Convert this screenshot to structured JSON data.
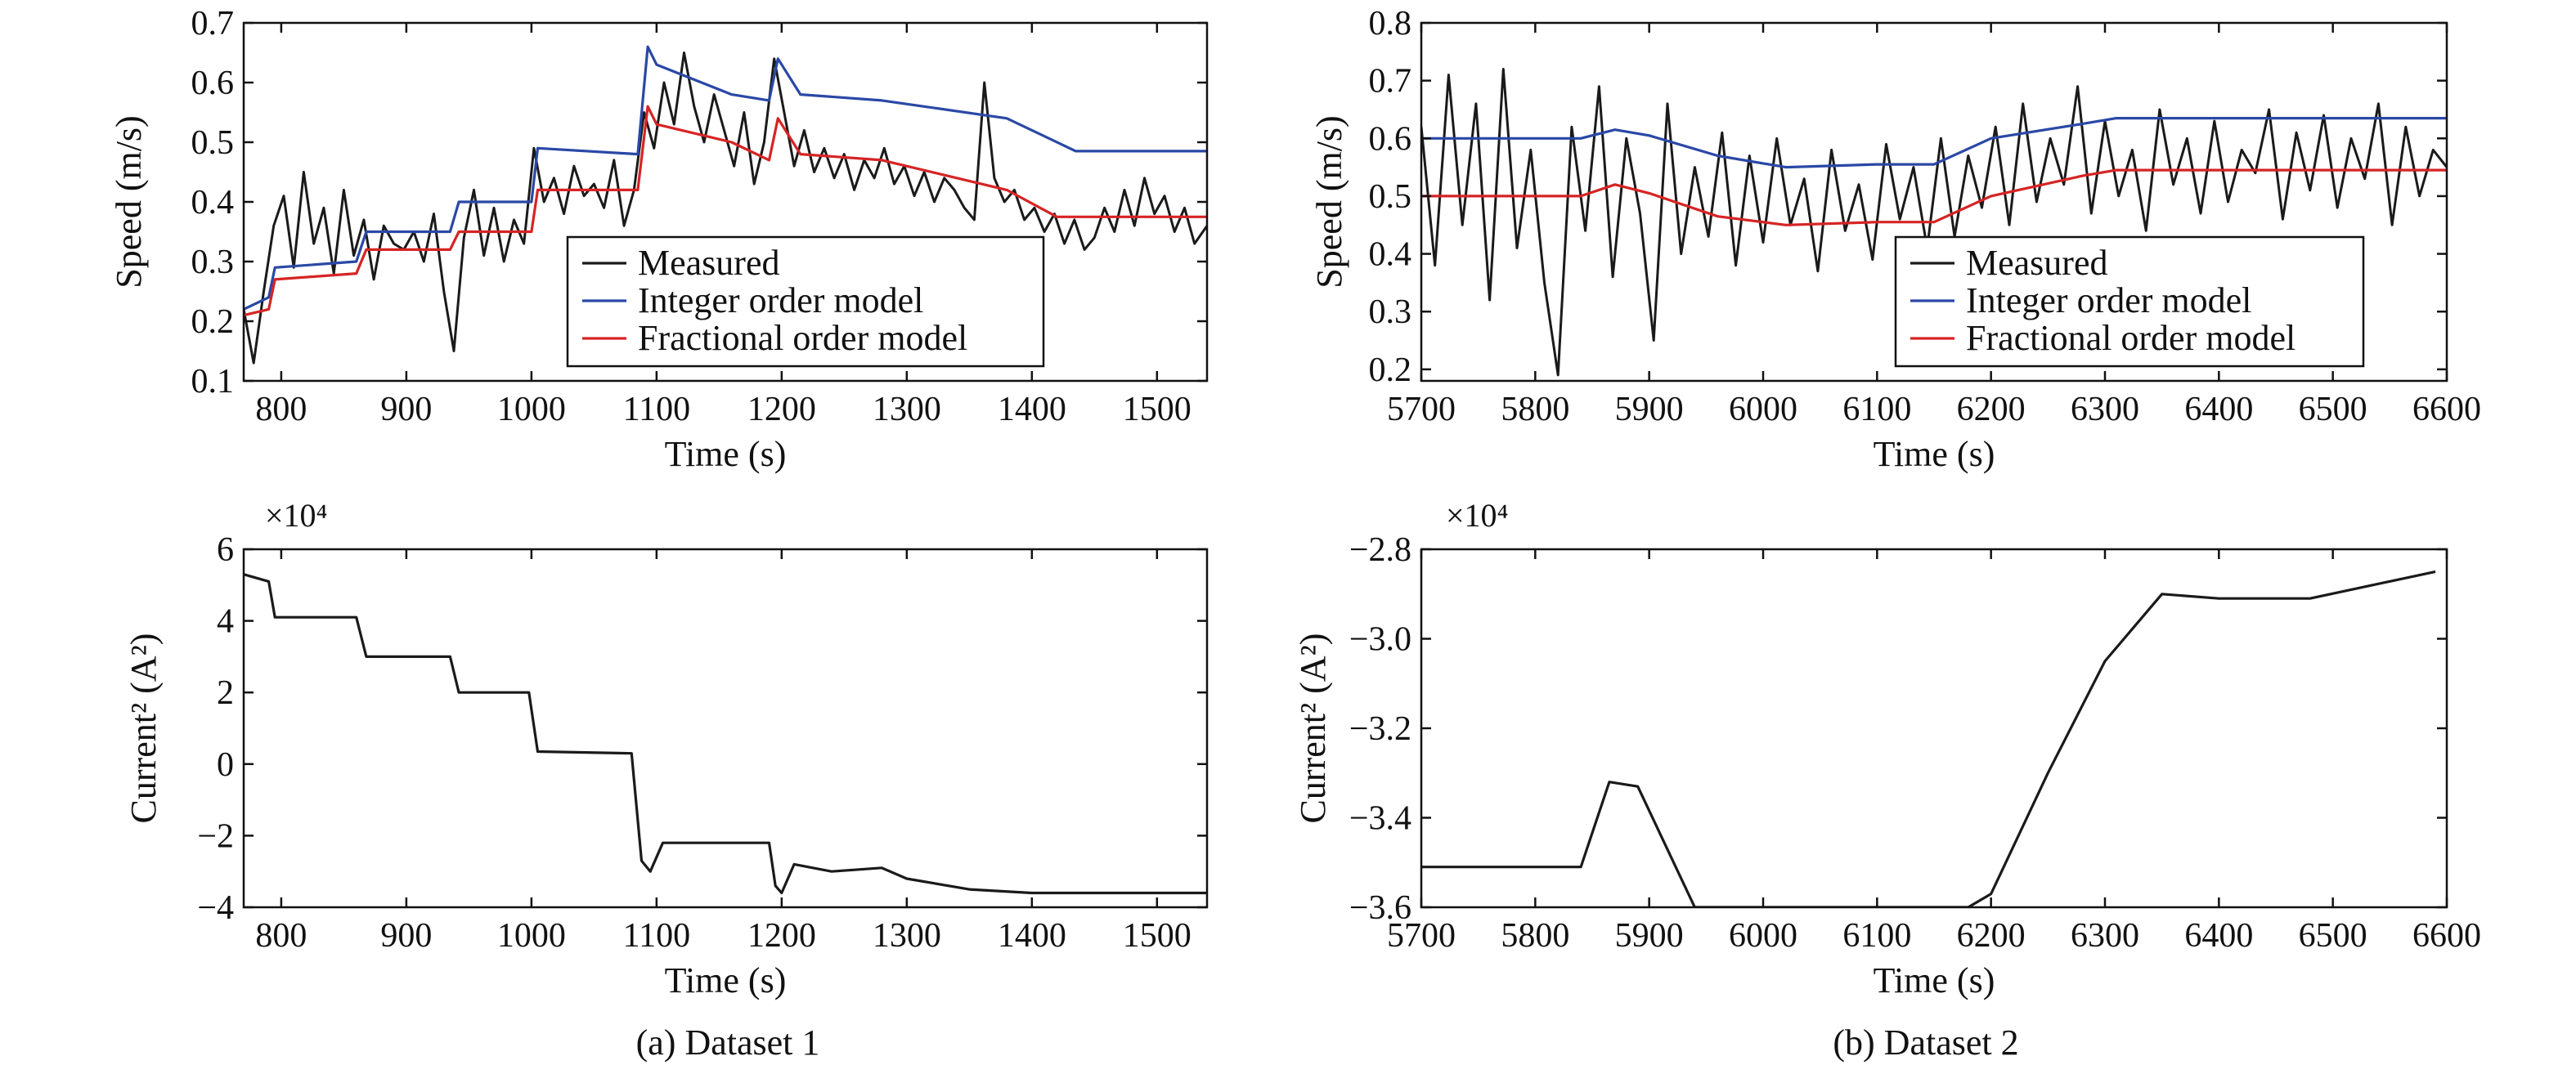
{
  "figure": {
    "caption_a": "(a) Dataset 1",
    "caption_b": "(b) Dataset 2"
  },
  "colors": {
    "measured": "#1a1a1a",
    "integer": "#2a48a6",
    "fractional": "#d62424",
    "current": "#1a1a1a"
  },
  "chart_data": [
    {
      "id": "a-speed",
      "type": "line",
      "xlabel": "Time (s)",
      "ylabel": "Speed (m/s)",
      "xlim": [
        770,
        1540
      ],
      "ylim": [
        0.1,
        0.7
      ],
      "xticks": [
        800,
        900,
        1000,
        1100,
        1200,
        1300,
        1400,
        1500
      ],
      "yticks": [
        0.1,
        0.2,
        0.3,
        0.4,
        0.5,
        0.6,
        0.7
      ],
      "ytick_labels": [
        "0.1",
        "0.2",
        "0.3",
        "0.4",
        "0.5",
        "0.6",
        "0.7"
      ],
      "legend": "lower-right",
      "series": [
        {
          "name": "Measured",
          "color_key": "measured",
          "x": [
            770,
            778,
            786,
            794,
            802,
            810,
            818,
            826,
            834,
            842,
            850,
            858,
            866,
            874,
            882,
            890,
            898,
            906,
            914,
            922,
            930,
            938,
            946,
            954,
            962,
            970,
            978,
            986,
            994,
            1002,
            1010,
            1018,
            1026,
            1034,
            1042,
            1050,
            1058,
            1066,
            1074,
            1082,
            1090,
            1098,
            1106,
            1114,
            1122,
            1130,
            1138,
            1146,
            1154,
            1162,
            1170,
            1178,
            1186,
            1194,
            1202,
            1210,
            1218,
            1226,
            1234,
            1242,
            1250,
            1258,
            1266,
            1274,
            1282,
            1290,
            1298,
            1306,
            1314,
            1322,
            1330,
            1338,
            1346,
            1354,
            1362,
            1370,
            1378,
            1386,
            1394,
            1402,
            1410,
            1418,
            1426,
            1434,
            1442,
            1450,
            1458,
            1466,
            1474,
            1482,
            1490,
            1498,
            1506,
            1514,
            1522,
            1530,
            1540
          ],
          "y": [
            0.22,
            0.13,
            0.25,
            0.36,
            0.41,
            0.29,
            0.45,
            0.33,
            0.39,
            0.28,
            0.42,
            0.31,
            0.37,
            0.27,
            0.36,
            0.33,
            0.32,
            0.35,
            0.3,
            0.38,
            0.25,
            0.15,
            0.34,
            0.42,
            0.31,
            0.39,
            0.3,
            0.37,
            0.33,
            0.49,
            0.4,
            0.44,
            0.38,
            0.46,
            0.41,
            0.43,
            0.39,
            0.47,
            0.36,
            0.42,
            0.55,
            0.49,
            0.6,
            0.53,
            0.65,
            0.56,
            0.5,
            0.58,
            0.52,
            0.46,
            0.55,
            0.43,
            0.5,
            0.64,
            0.55,
            0.46,
            0.52,
            0.45,
            0.49,
            0.44,
            0.48,
            0.42,
            0.47,
            0.44,
            0.49,
            0.43,
            0.46,
            0.41,
            0.45,
            0.4,
            0.44,
            0.42,
            0.39,
            0.37,
            0.6,
            0.44,
            0.4,
            0.42,
            0.37,
            0.39,
            0.35,
            0.38,
            0.33,
            0.37,
            0.32,
            0.34,
            0.39,
            0.35,
            0.42,
            0.36,
            0.44,
            0.38,
            0.41,
            0.35,
            0.39,
            0.33,
            0.36
          ]
        },
        {
          "name": "Integer order model",
          "color_key": "integer",
          "x": [
            770,
            790,
            795,
            860,
            868,
            935,
            942,
            1000,
            1005,
            1085,
            1093,
            1100,
            1160,
            1190,
            1197,
            1215,
            1280,
            1380,
            1435,
            1540
          ],
          "y": [
            0.22,
            0.24,
            0.29,
            0.3,
            0.35,
            0.35,
            0.4,
            0.4,
            0.49,
            0.48,
            0.66,
            0.63,
            0.58,
            0.57,
            0.64,
            0.58,
            0.57,
            0.54,
            0.485,
            0.485
          ]
        },
        {
          "name": "Fractional order model",
          "color_key": "fractional",
          "x": [
            770,
            790,
            795,
            860,
            868,
            935,
            942,
            1000,
            1005,
            1085,
            1093,
            1100,
            1160,
            1190,
            1197,
            1215,
            1280,
            1380,
            1420,
            1540
          ],
          "y": [
            0.21,
            0.22,
            0.27,
            0.28,
            0.32,
            0.32,
            0.35,
            0.35,
            0.42,
            0.42,
            0.56,
            0.53,
            0.5,
            0.47,
            0.54,
            0.48,
            0.47,
            0.42,
            0.375,
            0.375
          ]
        }
      ]
    },
    {
      "id": "b-speed",
      "type": "line",
      "xlabel": "Time (s)",
      "ylabel": "Speed (m/s)",
      "xlim": [
        5700,
        6600
      ],
      "ylim": [
        0.18,
        0.8
      ],
      "xticks": [
        5700,
        5800,
        5900,
        6000,
        6100,
        6200,
        6300,
        6400,
        6500,
        6600
      ],
      "yticks": [
        0.2,
        0.3,
        0.4,
        0.5,
        0.6,
        0.7,
        0.8
      ],
      "ytick_labels": [
        "0.2",
        "0.3",
        "0.4",
        "0.5",
        "0.6",
        "0.7",
        "0.8"
      ],
      "legend": "lower-right",
      "series": [
        {
          "name": "Measured",
          "color_key": "measured",
          "x": [
            5700,
            5712,
            5724,
            5736,
            5748,
            5760,
            5772,
            5784,
            5796,
            5808,
            5820,
            5832,
            5844,
            5856,
            5868,
            5880,
            5892,
            5904,
            5916,
            5928,
            5940,
            5952,
            5964,
            5976,
            5988,
            6000,
            6012,
            6024,
            6036,
            6048,
            6060,
            6072,
            6084,
            6096,
            6108,
            6120,
            6132,
            6144,
            6156,
            6168,
            6180,
            6192,
            6204,
            6216,
            6228,
            6240,
            6252,
            6264,
            6276,
            6288,
            6300,
            6312,
            6324,
            6336,
            6348,
            6360,
            6372,
            6384,
            6396,
            6408,
            6420,
            6432,
            6444,
            6456,
            6468,
            6480,
            6492,
            6504,
            6516,
            6528,
            6540,
            6552,
            6564,
            6576,
            6588,
            6600
          ],
          "y": [
            0.62,
            0.38,
            0.71,
            0.45,
            0.66,
            0.32,
            0.72,
            0.41,
            0.58,
            0.35,
            0.19,
            0.62,
            0.44,
            0.69,
            0.36,
            0.6,
            0.47,
            0.25,
            0.66,
            0.4,
            0.55,
            0.43,
            0.61,
            0.38,
            0.57,
            0.42,
            0.6,
            0.45,
            0.53,
            0.37,
            0.58,
            0.44,
            0.52,
            0.39,
            0.59,
            0.46,
            0.55,
            0.41,
            0.6,
            0.43,
            0.57,
            0.48,
            0.62,
            0.45,
            0.66,
            0.49,
            0.6,
            0.52,
            0.69,
            0.47,
            0.63,
            0.5,
            0.58,
            0.44,
            0.65,
            0.52,
            0.6,
            0.47,
            0.63,
            0.49,
            0.58,
            0.54,
            0.65,
            0.46,
            0.61,
            0.51,
            0.64,
            0.48,
            0.6,
            0.53,
            0.66,
            0.45,
            0.62,
            0.5,
            0.58,
            0.55
          ]
        },
        {
          "name": "Integer order model",
          "color_key": "integer",
          "x": [
            5700,
            5840,
            5870,
            5900,
            5960,
            6020,
            6100,
            6150,
            6200,
            6280,
            6310,
            6600
          ],
          "y": [
            0.6,
            0.6,
            0.615,
            0.605,
            0.57,
            0.55,
            0.555,
            0.555,
            0.6,
            0.625,
            0.635,
            0.635
          ]
        },
        {
          "name": "Fractional order model",
          "color_key": "fractional",
          "x": [
            5700,
            5840,
            5870,
            5900,
            5960,
            6020,
            6100,
            6150,
            6200,
            6280,
            6310,
            6600
          ],
          "y": [
            0.5,
            0.5,
            0.52,
            0.505,
            0.465,
            0.45,
            0.455,
            0.455,
            0.5,
            0.535,
            0.545,
            0.545
          ]
        }
      ]
    },
    {
      "id": "a-current",
      "type": "line",
      "xlabel": "Time (s)",
      "ylabel": "Current² (A²)",
      "multiplier": "×10⁴",
      "xlim": [
        770,
        1540
      ],
      "ylim": [
        -4,
        6
      ],
      "xticks": [
        800,
        900,
        1000,
        1100,
        1200,
        1300,
        1400,
        1500
      ],
      "yticks": [
        -4,
        -2,
        0,
        2,
        4,
        6
      ],
      "ytick_labels": [
        "−4",
        "−2",
        "0",
        "2",
        "4",
        "6"
      ],
      "series": [
        {
          "name": "Current²",
          "color_key": "current",
          "x": [
            770,
            790,
            795,
            860,
            868,
            935,
            942,
            998,
            1005,
            1080,
            1088,
            1095,
            1105,
            1190,
            1195,
            1200,
            1210,
            1240,
            1280,
            1300,
            1350,
            1400,
            1540
          ],
          "y": [
            5.3,
            5.1,
            4.1,
            4.1,
            3.0,
            3.0,
            2.0,
            2.0,
            0.35,
            0.3,
            -2.7,
            -3.0,
            -2.2,
            -2.2,
            -3.4,
            -3.6,
            -2.8,
            -3.0,
            -2.9,
            -3.2,
            -3.5,
            -3.6,
            -3.6
          ]
        }
      ]
    },
    {
      "id": "b-current",
      "type": "line",
      "xlabel": "Time (s)",
      "ylabel": "Current² (A²)",
      "multiplier": "×10⁴",
      "xlim": [
        5700,
        6600
      ],
      "ylim": [
        -3.6,
        -2.8
      ],
      "xticks": [
        5700,
        5800,
        5900,
        6000,
        6100,
        6200,
        6300,
        6400,
        6500,
        6600
      ],
      "yticks": [
        -3.6,
        -3.4,
        -3.2,
        -3.0,
        -2.8
      ],
      "ytick_labels": [
        "−3.6",
        "−3.4",
        "−3.2",
        "−3.0",
        "−2.8"
      ],
      "series": [
        {
          "name": "Current²",
          "color_key": "current",
          "x": [
            5700,
            5840,
            5865,
            5890,
            5940,
            6180,
            6200,
            6250,
            6300,
            6350,
            6400,
            6480,
            6590
          ],
          "y": [
            -3.51,
            -3.51,
            -3.32,
            -3.33,
            -3.6,
            -3.6,
            -3.57,
            -3.3,
            -3.05,
            -2.9,
            -2.91,
            -2.91,
            -2.85
          ]
        }
      ]
    }
  ]
}
